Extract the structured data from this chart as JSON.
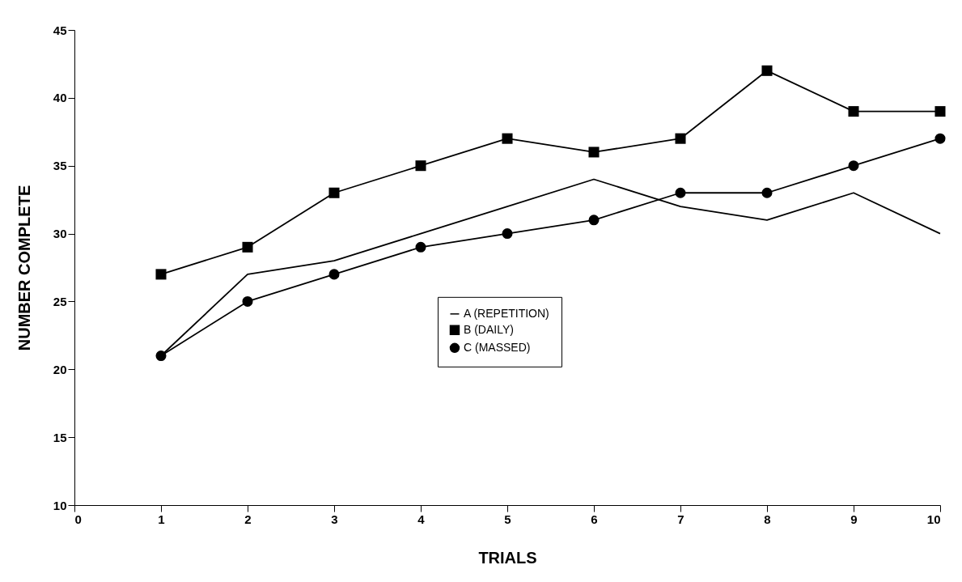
{
  "chart_data": {
    "type": "line",
    "xlabel": "TRIALS",
    "ylabel": "NUMBER COMPLETE",
    "x": [
      1,
      2,
      3,
      4,
      5,
      6,
      7,
      8,
      9,
      10
    ],
    "xlim": [
      0,
      10
    ],
    "xticks": [
      0,
      1,
      2,
      3,
      4,
      5,
      6,
      7,
      8,
      9,
      10
    ],
    "ylim": [
      10,
      45
    ],
    "yticks": [
      10,
      15,
      20,
      25,
      30,
      35,
      40,
      45
    ],
    "grid": false,
    "legend": "center",
    "line_style": "solid",
    "series": [
      {
        "name": "A (REPETITION)",
        "color": "#000000",
        "marker": "none",
        "values": [
          21,
          27,
          28,
          30,
          32,
          34,
          32,
          31,
          33,
          30
        ]
      },
      {
        "name": "B (DAILY)",
        "color": "#000000",
        "marker": "square",
        "values": [
          27,
          29,
          33,
          35,
          37,
          36,
          37,
          42,
          39,
          39
        ]
      },
      {
        "name": "C (MASSED)",
        "color": "#000000",
        "marker": "circle",
        "values": [
          21,
          25,
          27,
          29,
          30,
          31,
          33,
          33,
          35,
          37
        ]
      }
    ]
  }
}
